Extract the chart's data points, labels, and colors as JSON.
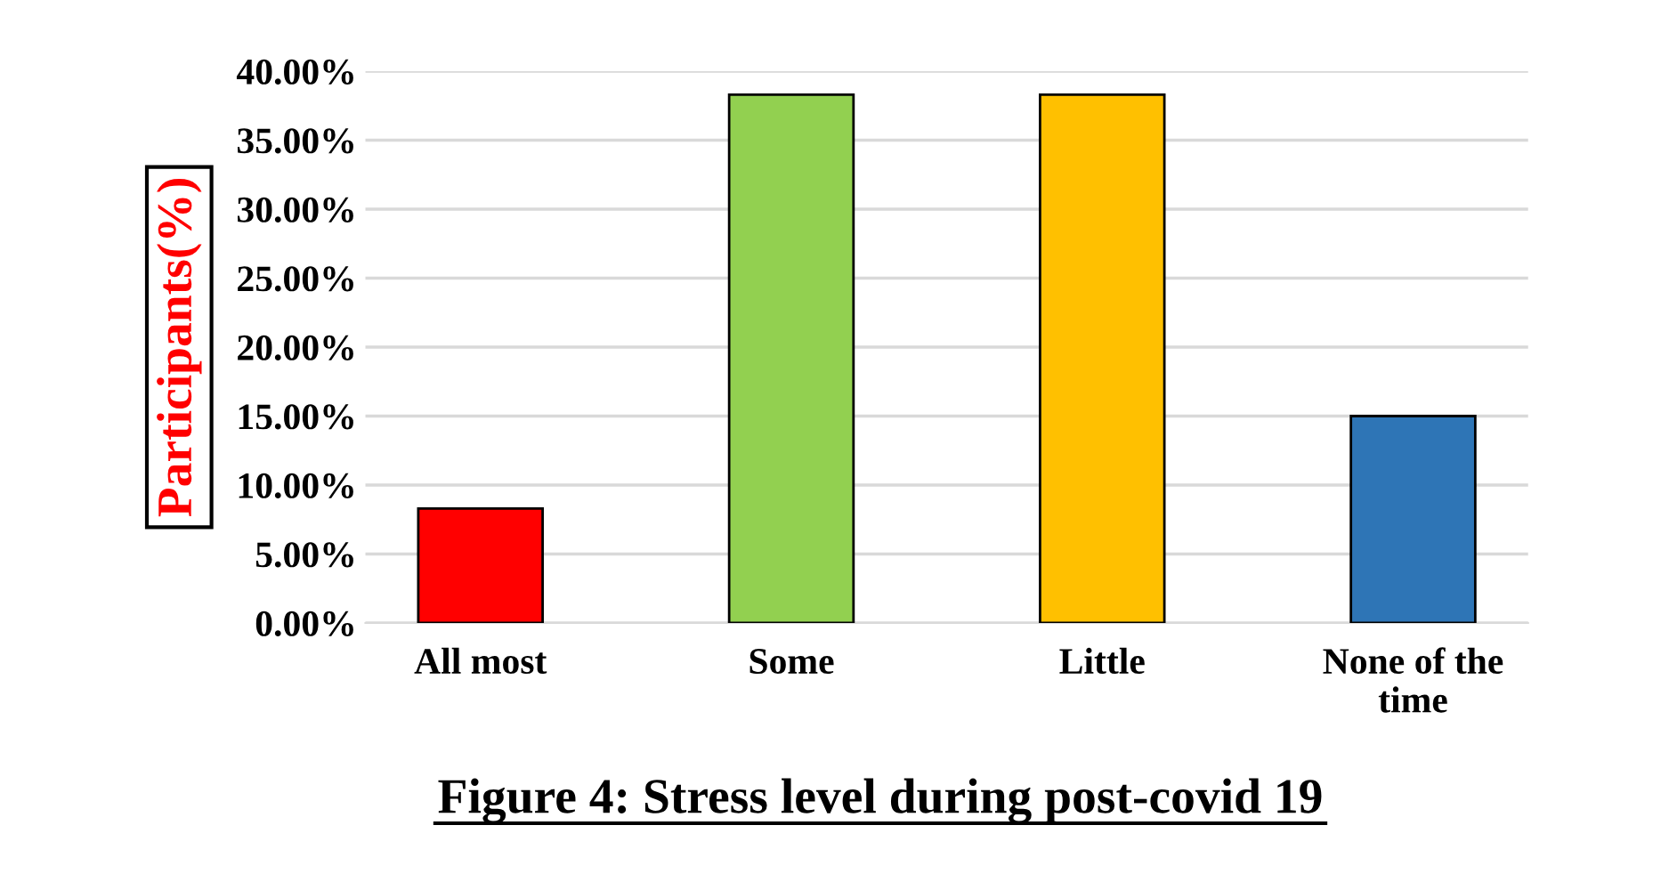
{
  "chart_data": {
    "type": "bar",
    "title": "Figure 4: Stress level during post-covid 19",
    "ylabel": "Participants(%)",
    "categories": [
      "All most",
      "Some",
      "Little",
      "None of the\ntime"
    ],
    "values": [
      8.3,
      38.3,
      38.3,
      15.0
    ],
    "colors": [
      "#ff0000",
      "#92d050",
      "#ffc000",
      "#2e75b6"
    ],
    "ylim": [
      0,
      40
    ],
    "yticks": [
      {
        "value": 0,
        "label": "0.00%"
      },
      {
        "value": 5,
        "label": "5.00%"
      },
      {
        "value": 10,
        "label": "10.00%"
      },
      {
        "value": 15,
        "label": "15.00%"
      },
      {
        "value": 20,
        "label": "20.00%"
      },
      {
        "value": 25,
        "label": "25.00%"
      },
      {
        "value": 30,
        "label": "30.00%"
      },
      {
        "value": 35,
        "label": "35.00%"
      },
      {
        "value": 40,
        "label": "40.00%"
      }
    ],
    "grid": "y"
  }
}
